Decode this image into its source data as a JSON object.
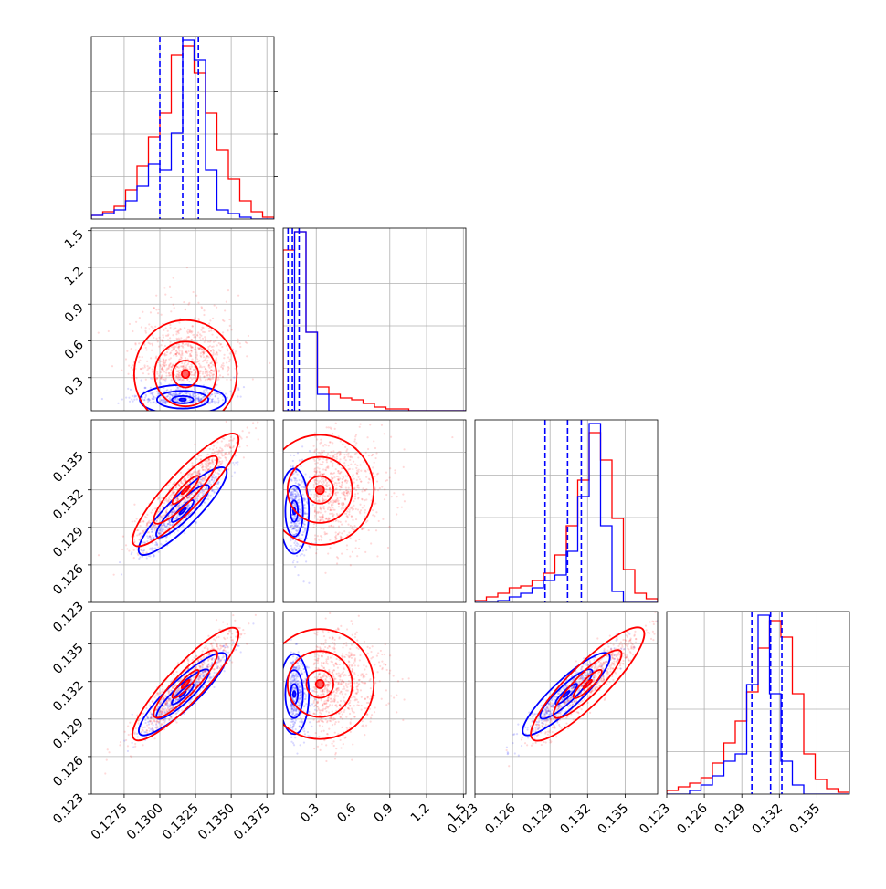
{
  "chart_data": {
    "type": "corner",
    "title": "",
    "parameters": [
      {
        "name": "",
        "range": [
          0.1252,
          0.138
        ],
        "ticks": [
          0.1275,
          0.13,
          0.1325,
          0.135,
          0.1375
        ],
        "tick_labels": [
          "0.1275",
          "0.1300",
          "0.1325",
          "0.1350",
          "0.1375"
        ]
      },
      {
        "name": "",
        "range": [
          0.03,
          1.52
        ],
        "ticks": [
          0.3,
          0.6,
          0.9,
          1.2,
          1.5
        ],
        "tick_labels": [
          "0.3",
          "0.6",
          "0.9",
          "1.2",
          "1.5"
        ]
      },
      {
        "name": "",
        "range": [
          0.123,
          0.1376
        ],
        "ticks": [
          0.123,
          0.126,
          0.129,
          0.132,
          0.135
        ],
        "tick_labels": [
          "0.123",
          "0.126",
          "0.129",
          "0.132",
          "0.135"
        ]
      },
      {
        "name": "",
        "range": [
          0.123,
          0.1376
        ],
        "ticks": [
          0.123,
          0.126,
          0.129,
          0.132,
          0.135
        ],
        "tick_labels": [
          "0.123",
          "0.126",
          "0.129",
          "0.132",
          "0.135"
        ]
      }
    ],
    "series": [
      {
        "color": "#0000ff",
        "quantiles": [
          [
            0.13,
            0.1316,
            0.1327
          ],
          [
            0.07,
            0.105,
            0.16
          ],
          [
            0.1286,
            0.1304,
            0.1315
          ],
          [
            0.1298,
            0.1313,
            0.1322
          ]
        ],
        "mean": [
          0.1316,
          0.12,
          0.1303,
          0.131
        ],
        "std": [
          0.0015,
          0.06,
          0.0017,
          0.0016
        ],
        "hist": [
          [
            0.02,
            0.03,
            0.05,
            0.1,
            0.18,
            0.3,
            0.27,
            0.47,
            0.98,
            0.87,
            0.27,
            0.05,
            0.03,
            0.01,
            0.0,
            0.0
          ],
          [
            0.0,
            0.98,
            0.43,
            0.09,
            0.0,
            0.0,
            0.0,
            0.0,
            0.0,
            0.0,
            0.0,
            0.0,
            0.0,
            0.0,
            0.0,
            0.0
          ],
          [
            0.0,
            0.0,
            0.01,
            0.03,
            0.05,
            0.08,
            0.12,
            0.15,
            0.28,
            0.58,
            0.98,
            0.42,
            0.06,
            0.0,
            0.0,
            0.0
          ],
          [
            0.0,
            0.0,
            0.02,
            0.05,
            0.1,
            0.18,
            0.22,
            0.6,
            0.98,
            0.55,
            0.18,
            0.05,
            0.0,
            0.0,
            0.0,
            0.0
          ]
        ]
      },
      {
        "color": "#ff0000",
        "quantiles": [],
        "mean": [
          0.1318,
          0.33,
          0.132,
          0.1318
        ],
        "std": [
          0.0018,
          0.22,
          0.0022,
          0.0022
        ],
        "hist": [
          [
            0.02,
            0.04,
            0.07,
            0.16,
            0.29,
            0.45,
            0.58,
            0.9,
            0.95,
            0.8,
            0.58,
            0.38,
            0.22,
            0.1,
            0.04,
            0.01
          ],
          [
            0.88,
            0.98,
            0.43,
            0.13,
            0.09,
            0.07,
            0.06,
            0.04,
            0.02,
            0.01,
            0.01,
            0.0,
            0.0,
            0.0,
            0.0,
            0.0
          ],
          [
            0.01,
            0.03,
            0.05,
            0.08,
            0.09,
            0.12,
            0.16,
            0.26,
            0.42,
            0.67,
            0.93,
            0.78,
            0.46,
            0.18,
            0.05,
            0.02
          ],
          [
            0.02,
            0.04,
            0.06,
            0.09,
            0.17,
            0.28,
            0.4,
            0.56,
            0.8,
            0.95,
            0.86,
            0.55,
            0.22,
            0.08,
            0.03,
            0.01
          ]
        ]
      }
    ],
    "grid": true
  }
}
